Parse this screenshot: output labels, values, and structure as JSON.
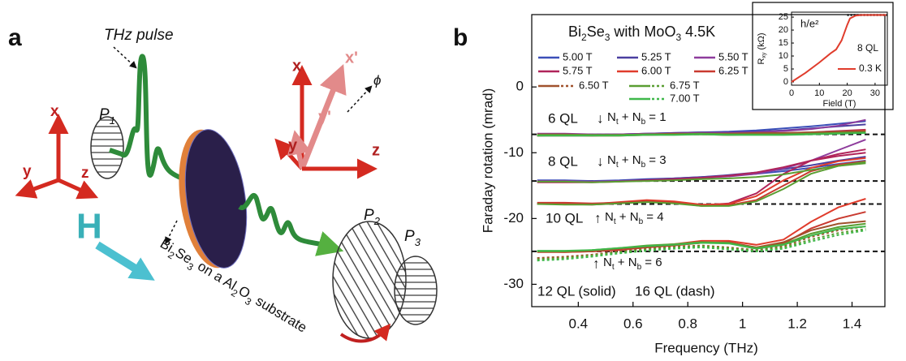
{
  "panel_a": {
    "label": "a",
    "pulse_label": "THz pulse",
    "p1": [
      "P",
      "1"
    ],
    "p2": [
      "P",
      "2"
    ],
    "p3": [
      "P",
      "3"
    ],
    "lab_axes": [
      "x",
      "y",
      "z"
    ],
    "field_label": "H",
    "sample_label": [
      "Bi",
      "2",
      "Se",
      "3",
      " on a Al",
      "2",
      "O",
      "3",
      " substrate"
    ],
    "rotated_axes": [
      "x",
      "y",
      "z",
      "x'",
      "y'"
    ],
    "angle_label": "ϕ"
  },
  "panel_b_label": "b",
  "chart_data": {
    "type": "line",
    "title": [
      "Bi",
      "2",
      "Se",
      "3",
      " with MoO",
      "3",
      " 4.5K"
    ],
    "xlabel": "Frequency (THz)",
    "ylabel": "Faraday rotation (mrad)",
    "xlim": [
      0.23,
      1.52
    ],
    "xticks": [
      0.4,
      0.6,
      0.8,
      1.0,
      1.2,
      1.4
    ],
    "ylim": [
      -33.4,
      11
    ],
    "yticks": [
      0,
      -10,
      -20,
      -30
    ],
    "x": [
      0.25,
      0.35,
      0.45,
      0.55,
      0.65,
      0.75,
      0.85,
      0.95,
      1.05,
      1.15,
      1.25,
      1.35,
      1.45
    ],
    "series": [
      {
        "name": "5.00 T",
        "color": "#3b4fb8",
        "values": [
          [
            -7.2,
            -7.2,
            -7.2,
            -7.2,
            -7.1,
            -7.0,
            -6.9,
            -6.8,
            -6.6,
            -6.3,
            -6.0,
            -5.6,
            -5.2
          ],
          [
            -14.2,
            -14.2,
            -14.3,
            -14.2,
            -14.0,
            -13.9,
            -13.7,
            -13.5,
            -13.2,
            -12.8,
            -12.3,
            -11.7,
            -11.2
          ]
        ]
      },
      {
        "name": "5.25 T",
        "color": "#4a3fa0",
        "values": [
          [
            -7.3,
            -7.3,
            -7.3,
            -7.2,
            -7.1,
            -7.0,
            -6.9,
            -6.9,
            -6.8,
            -6.6,
            -6.3,
            -6.0,
            -5.7
          ],
          [
            -14.4,
            -14.4,
            -14.4,
            -14.3,
            -14.1,
            -13.9,
            -13.7,
            -13.4,
            -13.0,
            -12.5,
            -11.9,
            -11.2,
            -10.6
          ]
        ]
      },
      {
        "name": "5.50 T",
        "color": "#8e3c9c",
        "values": [
          [
            -7.1,
            -7.1,
            -7.2,
            -7.2,
            -7.1,
            -7.1,
            -7.0,
            -7.0,
            -6.9,
            -6.7,
            -6.4,
            -5.9,
            -5.0
          ],
          [
            -14.3,
            -14.3,
            -14.4,
            -14.3,
            -14.2,
            -14.0,
            -13.8,
            -13.6,
            -13.2,
            -12.4,
            -11.2,
            -9.6,
            -8.0
          ]
        ]
      },
      {
        "name": "5.75 T",
        "color": "#b0245a",
        "values": [
          [
            -7.4,
            -7.4,
            -7.4,
            -7.3,
            -7.3,
            -7.2,
            -7.2,
            -7.1,
            -7.1,
            -7.0,
            -6.9,
            -6.7,
            -6.5
          ],
          [
            -14.5,
            -14.5,
            -14.5,
            -14.4,
            -14.2,
            -14.0,
            -13.8,
            -13.5,
            -13.0,
            -12.2,
            -11.2,
            -10.2,
            -9.5
          ],
          [
            -17.8,
            -17.8,
            -17.9,
            -17.7,
            -17.4,
            -17.6,
            -18.0,
            -17.7,
            -16.2,
            -13.2,
            -11.2,
            -10.5,
            -10.0
          ]
        ]
      },
      {
        "name": "6.00 T",
        "color": "#e03c2c",
        "values": [
          [
            -7.3,
            -7.3,
            -7.4,
            -7.4,
            -7.3,
            -7.2,
            -7.2,
            -7.3,
            -7.2,
            -7.1,
            -7.0,
            -6.8,
            -6.6
          ],
          [
            -17.7,
            -17.7,
            -17.8,
            -17.5,
            -17.2,
            -17.4,
            -17.9,
            -17.8,
            -16.6,
            -14.2,
            -12.3,
            -11.3,
            -10.8
          ],
          [
            -25.0,
            -25.1,
            -25.0,
            -24.7,
            -24.2,
            -23.9,
            -23.4,
            -23.4,
            -24.0,
            -23.2,
            -20.5,
            -18.3,
            -17.0
          ]
        ]
      },
      {
        "name": "6.25 T",
        "color": "#c93a30",
        "values": [
          [
            -7.4,
            -7.3,
            -7.3,
            -7.3,
            -7.2,
            -7.1,
            -7.1,
            -7.2,
            -7.1,
            -7.1,
            -7.0,
            -6.9,
            -6.7
          ],
          [
            -17.6,
            -17.6,
            -17.7,
            -17.6,
            -17.4,
            -17.6,
            -18.1,
            -18.0,
            -17.2,
            -15.0,
            -12.8,
            -11.8,
            -11.3
          ],
          [
            -25.1,
            -25.1,
            -25.0,
            -24.8,
            -24.4,
            -24.1,
            -23.7,
            -23.6,
            -24.4,
            -23.8,
            -21.5,
            -20.0,
            -19.0
          ]
        ]
      },
      {
        "name": "6.50 T",
        "color": "#a0522d",
        "values": [
          [
            -7.2,
            -7.2,
            -7.3,
            -7.3,
            -7.2,
            -7.2,
            -7.1,
            -7.1,
            -7.0,
            -7.0,
            -6.9,
            -6.8,
            -6.7
          ],
          [
            -25.0,
            -25.0,
            -24.9,
            -24.6,
            -24.3,
            -24.0,
            -23.7,
            -23.7,
            -24.4,
            -23.6,
            -21.8,
            -20.8,
            -20.4
          ]
        ],
        "dash_values": [
          [
            -26.0,
            -25.8,
            -25.5,
            -25.0,
            -24.6,
            -24.3,
            -24.1,
            -24.4,
            -24.8,
            -24.2,
            -22.8,
            -21.8,
            -21.2
          ]
        ]
      },
      {
        "name": "6.75 T",
        "color": "#5a9e32",
        "values": [
          [
            -7.3,
            -7.3,
            -7.3,
            -7.3,
            -7.2,
            -7.2,
            -7.1,
            -7.2,
            -7.2,
            -7.2,
            -7.1,
            -7.0,
            -6.9
          ],
          [
            -14.4,
            -14.4,
            -14.5,
            -14.4,
            -14.3,
            -14.2,
            -14.0,
            -13.9,
            -13.7,
            -13.3,
            -12.6,
            -12.0,
            -11.6
          ],
          [
            -17.8,
            -17.9,
            -17.9,
            -17.7,
            -17.5,
            -17.7,
            -18.1,
            -18.1,
            -17.4,
            -15.5,
            -13.2,
            -12.0,
            -11.4
          ],
          [
            -25.0,
            -25.0,
            -24.8,
            -24.5,
            -24.1,
            -23.9,
            -23.6,
            -23.7,
            -24.5,
            -23.9,
            -22.3,
            -21.3,
            -20.8
          ]
        ],
        "dash_values": [
          [
            -26.2,
            -26.0,
            -25.6,
            -25.1,
            -24.7,
            -24.4,
            -24.2,
            -24.5,
            -24.9,
            -24.4,
            -23.2,
            -22.2,
            -21.6
          ]
        ]
      },
      {
        "name": "7.00 T",
        "color": "#3fb84a",
        "values": [
          [
            -7.4,
            -7.4,
            -7.4,
            -7.4,
            -7.3,
            -7.3,
            -7.2,
            -7.3,
            -7.3,
            -7.3,
            -7.2,
            -7.1,
            -7.0
          ],
          [
            -24.9,
            -24.9,
            -24.8,
            -24.5,
            -24.2,
            -24.0,
            -23.7,
            -23.8,
            -24.6,
            -24.0,
            -22.6,
            -21.6,
            -21.2
          ]
        ],
        "dash_values": [
          [
            -26.4,
            -26.2,
            -25.8,
            -25.3,
            -24.9,
            -24.6,
            -24.4,
            -24.7,
            -25.0,
            -24.6,
            -23.5,
            -22.5,
            -21.8
          ]
        ]
      }
    ],
    "reference_lines": [
      -7.2,
      -14.3,
      -17.8,
      -25.0
    ],
    "annotations": [
      {
        "label": "6 QL",
        "arrow": "↓",
        "formula": [
          "N",
          "t",
          " + N",
          "b",
          " = 1"
        ]
      },
      {
        "label": "8 QL",
        "arrow": "↓",
        "formula": [
          "N",
          "t",
          " + N",
          "b",
          " = 3"
        ]
      },
      {
        "label": "10 QL",
        "arrow": "↑",
        "formula": [
          "N",
          "t",
          " + N",
          "b",
          " = 4"
        ]
      },
      {
        "arrow": "↑",
        "formula": [
          "N",
          "t",
          " + N",
          "b",
          " = 6"
        ]
      }
    ],
    "thickness_notes": [
      "12 QL (solid)",
      "16 QL (dash)"
    ],
    "inset": {
      "xlabel": "Field (T)",
      "ylabel": [
        "R",
        "xy",
        " (kΩ)"
      ],
      "xlim": [
        0,
        34.4
      ],
      "xticks": [
        0,
        10,
        20,
        30
      ],
      "ylim": [
        -1.25,
        26.9
      ],
      "yticks": [
        0,
        5,
        10,
        15,
        20,
        25
      ],
      "quantum_line": 25.8,
      "quantum_label": "h/e²",
      "sample_label": "8 QL",
      "series": {
        "name": "0.3 K",
        "color": "#e03c2c",
        "x": [
          0,
          5,
          10,
          14,
          16,
          18,
          20,
          21,
          23,
          25,
          30,
          34
        ],
        "values": [
          0,
          3.5,
          7.5,
          11,
          12.5,
          16,
          22,
          24.5,
          25.6,
          25.8,
          25.8,
          25.8
        ]
      }
    }
  }
}
